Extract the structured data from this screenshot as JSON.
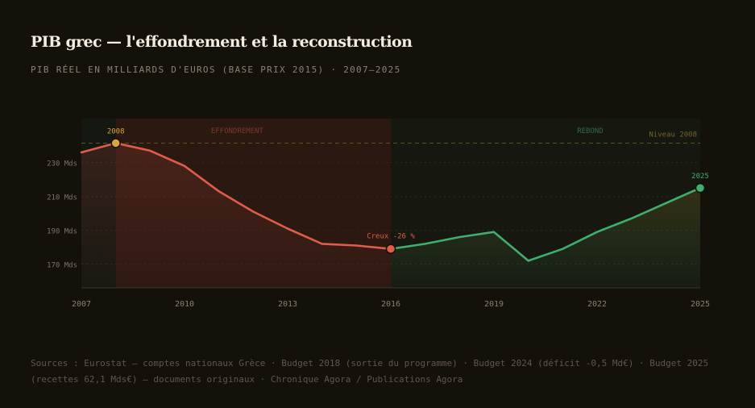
{
  "header": {
    "title": "PIB grec — l'effondrement et la reconstruction",
    "subtitle": "PIB RÉEL EN MILLIARDS D'EUROS (BASE PRIX 2015) · 2007–2025"
  },
  "footer": {
    "sources": "Sources : Eurostat — comptes nationaux Grèce · Budget 2018 (sortie du programme) · Budget 2024 (déficit -0,5 Md€) · Budget 2025 (recettes 62,1 Mds€) — documents originaux · Chronique Agora / Publications Agora"
  },
  "colors": {
    "collapse_line": "#e05d4b",
    "rebound_line": "#3fae6e",
    "peak_marker": "#d9a63a",
    "collapse_band": "#2b1811",
    "rebound_band": "#16170f",
    "reference_line": "#5b5326",
    "background": "#14100a"
  },
  "chart_data": {
    "type": "line",
    "title": "PIB grec — l'effondrement et la reconstruction",
    "subtitle": "PIB RÉEL EN MILLIARDS D'EUROS (BASE PRIX 2015) · 2007–2025",
    "xlabel": "",
    "ylabel": "",
    "x_ticks": [
      2007,
      2010,
      2013,
      2016,
      2019,
      2022,
      2025
    ],
    "x_tick_labels": [
      "2007",
      "2010",
      "2013",
      "2016",
      "2019",
      "2022",
      "2025"
    ],
    "y_ticks": [
      170,
      190,
      210,
      230
    ],
    "y_tick_labels": [
      "170 Mds",
      "190 Mds",
      "210 Mds",
      "230 Mds"
    ],
    "xlim": [
      2007,
      2025
    ],
    "ylim": [
      156,
      256
    ],
    "grid": "horizontal dotted",
    "series": [
      {
        "name": "",
        "color": "#e05d4b",
        "points": [
          {
            "x": 2007,
            "y": 236
          },
          {
            "x": 2008,
            "y": 241.5
          },
          {
            "x": 2009,
            "y": 237
          },
          {
            "x": 2010,
            "y": 228
          },
          {
            "x": 2011,
            "y": 213
          },
          {
            "x": 2012,
            "y": 201
          },
          {
            "x": 2013,
            "y": 191
          },
          {
            "x": 2014,
            "y": 182
          },
          {
            "x": 2015,
            "y": 181
          },
          {
            "x": 2016,
            "y": 179
          }
        ]
      },
      {
        "name": "",
        "color": "#3fae6e",
        "points": [
          {
            "x": 2016,
            "y": 179
          },
          {
            "x": 2017,
            "y": 182
          },
          {
            "x": 2018,
            "y": 186
          },
          {
            "x": 2019,
            "y": 189
          },
          {
            "x": 2020,
            "y": 172
          },
          {
            "x": 2021,
            "y": 179
          },
          {
            "x": 2022,
            "y": 189
          },
          {
            "x": 2023,
            "y": 197
          },
          {
            "x": 2024,
            "y": 206
          },
          {
            "x": 2025,
            "y": 215
          }
        ]
      }
    ],
    "bands": [
      {
        "label": "EFFONDREMENT",
        "from": 2008,
        "to": 2016,
        "color": "#2b1811",
        "text_color": "#7a3a2c"
      },
      {
        "label": "REBOND",
        "from": 2016,
        "to": 2025,
        "color": "#16170f",
        "text_color": "#2f6a44"
      }
    ],
    "reference_line": {
      "label": "Niveau 2008",
      "y": 241.5,
      "color": "#5b5326",
      "text_color": "#6f6530"
    },
    "annotations": [
      {
        "label": "2008",
        "x": 2008,
        "y": 241.5,
        "color": "#d9a63a"
      },
      {
        "label": "Creux -26 %",
        "x": 2016,
        "y": 179,
        "color": "#e05d4b"
      },
      {
        "label": "2025",
        "x": 2025,
        "y": 215,
        "color": "#3fae6e"
      }
    ]
  }
}
